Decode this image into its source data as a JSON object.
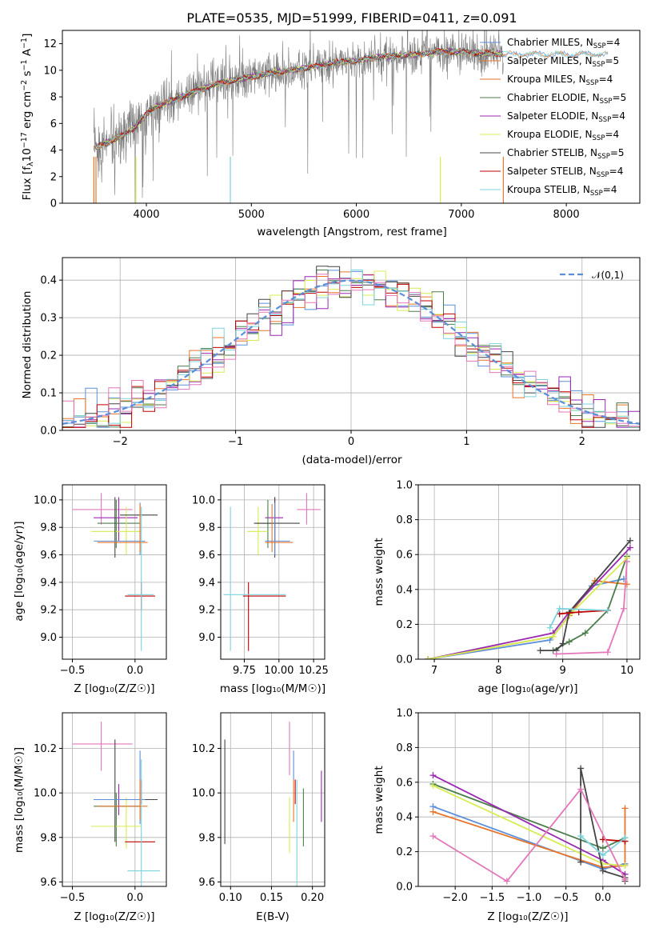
{
  "colors": {
    "Chabrier MILES": "#5b8fd9",
    "Salpeter MILES": "#e7752a",
    "Kroupa MILES": "#e7752a",
    "Chabrier ELODIE": "#4c7d4c",
    "Salpeter ELODIE": "#9a27b0",
    "Kroupa ELODIE": "#d6ec52",
    "Chabrier STELIB": "#444444",
    "Salpeter STELIB": "#c00000",
    "Kroupa STELIB": "#7dd3dc",
    "pink": "#e377b9",
    "gauss": "#5b8fd9",
    "grid": "#b0b0b0",
    "spectrum_gray": "#7a7a7a"
  },
  "chart_data": [
    {
      "id": "spectrum",
      "type": "line",
      "title": "PLATE=0535, MJD=51999, FIBERID=0411, z=0.091",
      "xlabel": "wavelength [Angstrom, rest frame]",
      "ylabel": "Flux [f$_\\lambda$10$^{-17}$ erg cm$^{-2}$ s$^{-1}$ A$^{-1}$]",
      "ylabel_parts": [
        "Flux [f",
        "λ",
        "10",
        "−17",
        " erg cm",
        "−2",
        " s",
        "−1",
        " A",
        "−1",
        "]"
      ],
      "xlim": [
        3200,
        8700
      ],
      "ylim": [
        0,
        13
      ],
      "xticks": [
        "4000",
        "5000",
        "6000",
        "7000",
        "8000"
      ],
      "yticks": [
        "0",
        "2",
        "4",
        "6",
        "8",
        "10",
        "12"
      ],
      "continuum_x": [
        3500,
        3600,
        3700,
        3800,
        3900,
        4000,
        4100,
        4200,
        4400,
        4600,
        4800,
        5000,
        5200,
        5400,
        5600,
        5800,
        6000,
        6200,
        6400,
        6600,
        6800,
        7000,
        7200,
        7400
      ],
      "continuum_y": [
        4.1,
        4.5,
        4.8,
        5.2,
        5.8,
        6.7,
        7.3,
        7.6,
        8.2,
        8.8,
        9.2,
        9.5,
        9.8,
        10.0,
        10.3,
        10.6,
        10.7,
        11.0,
        11.1,
        11.2,
        11.4,
        11.4,
        11.3,
        11.2
      ],
      "miles_extension_to": 8400,
      "legend_position": "upper right",
      "legend": [
        {
          "name": "Chabrier MILES",
          "sub": "SSP",
          "n": "=4"
        },
        {
          "name": "Salpeter MILES",
          "sub": "SSP",
          "n": "=5"
        },
        {
          "name": "Kroupa MILES",
          "sub": "SSP",
          "n": "=4"
        },
        {
          "name": "Chabrier ELODIE",
          "sub": "SSP",
          "n": "=5"
        },
        {
          "name": "Salpeter ELODIE",
          "sub": "SSP",
          "n": "=4"
        },
        {
          "name": "Kroupa ELODIE",
          "sub": "SSP",
          "n": "=4"
        },
        {
          "name": "Chabrier STELIB",
          "sub": "SSP",
          "n": "=5"
        },
        {
          "name": "Salpeter STELIB",
          "sub": "SSP",
          "n": "=4"
        },
        {
          "name": "Kroupa STELIB",
          "sub": "SSP",
          "n": "=4"
        }
      ]
    },
    {
      "id": "residuals",
      "type": "histogram",
      "xlabel": "(data-model)/error",
      "ylabel": "Normed distribution",
      "xlim": [
        -2.5,
        2.5
      ],
      "ylim": [
        0,
        0.46
      ],
      "xticks": [
        "−2",
        "−1",
        "0",
        "1",
        "2"
      ],
      "yticks": [
        "0.0",
        "0.1",
        "0.2",
        "0.3",
        "0.4"
      ],
      "bin_width": 0.1,
      "legend": "𝒩(0,1)",
      "legend_position": "upper right",
      "series_colors": [
        "#5b8fd9",
        "#e7752a",
        "#4c7d4c",
        "#9a27b0",
        "#d6ec52",
        "#444444",
        "#c00000",
        "#7dd3dc",
        "#e377b9"
      ]
    },
    {
      "id": "z-age",
      "type": "errorbar",
      "xlabel": "Z [log₁₀(Z/Z☉)]",
      "ylabel": "age  [log₁₀(age/yr)]",
      "xlim": [
        -0.58,
        0.25
      ],
      "ylim": [
        8.84,
        10.11
      ],
      "xticks": [
        "−0.5",
        "0.0"
      ],
      "yticks": [
        "9.0",
        "9.2",
        "9.4",
        "9.6",
        "9.8",
        "10.0"
      ],
      "points": [
        {
          "color": "#e377b9",
          "x": -0.27,
          "xe": [
            -0.5,
            -0.02
          ],
          "y": 9.93,
          "ye": [
            9.82,
            10.05
          ]
        },
        {
          "color": "#9a27b0",
          "x": -0.13,
          "xe": [
            -0.33,
            0.02
          ],
          "y": 9.87,
          "ye": [
            9.7,
            10.02
          ]
        },
        {
          "color": "#4c7d4c",
          "x": -0.15,
          "xe": [
            -0.3,
            0.04
          ],
          "y": 9.83,
          "ye": [
            9.65,
            10.0
          ]
        },
        {
          "color": "#d6ec52",
          "x": -0.07,
          "xe": [
            -0.35,
            0.05
          ],
          "y": 9.77,
          "ye": [
            9.6,
            9.95
          ]
        },
        {
          "color": "#444444",
          "x": -0.16,
          "xe": [
            -0.12,
            0.18
          ],
          "y": 9.89,
          "ye": [
            9.58,
            10.02
          ]
        },
        {
          "color": "#5b8fd9",
          "x": 0.04,
          "xe": [
            -0.33,
            0.08
          ],
          "y": 9.7,
          "ye": [
            9.6,
            9.98
          ]
        },
        {
          "color": "#e7752a",
          "x": 0.04,
          "xe": [
            -0.3,
            0.1
          ],
          "y": 9.69,
          "ye": [
            9.62,
            9.97
          ]
        },
        {
          "color": "#c00000",
          "x": 0.05,
          "xe": [
            -0.08,
            0.16
          ],
          "y": 9.3,
          "ye": [
            9.2,
            9.4
          ]
        },
        {
          "color": "#7dd3dc",
          "x": 0.05,
          "xe": [
            -0.06,
            0.15
          ],
          "y": 9.31,
          "ye": [
            8.9,
            9.95
          ]
        }
      ]
    },
    {
      "id": "mass-age",
      "type": "errorbar",
      "xlabel": "mass [log₁₀(M/M☉)]",
      "ylabel": "",
      "xlim": [
        9.58,
        10.33
      ],
      "ylim": [
        8.84,
        10.11
      ],
      "xticks": [
        "9.75",
        "10.00",
        "10.25"
      ],
      "yticks": [
        "9.0",
        "9.2",
        "9.4",
        "9.6",
        "9.8",
        "10.0"
      ],
      "points": [
        {
          "color": "#e377b9",
          "x": 10.2,
          "xe": [
            10.13,
            10.3
          ],
          "y": 9.93,
          "ye": [
            9.82,
            10.05
          ]
        },
        {
          "color": "#9a27b0",
          "x": 9.97,
          "xe": [
            9.9,
            10.03
          ],
          "y": 9.87,
          "ye": [
            9.7,
            10.02
          ]
        },
        {
          "color": "#4c7d4c",
          "x": 9.92,
          "xe": [
            9.83,
            9.97
          ],
          "y": 9.83,
          "ye": [
            9.65,
            10.0
          ]
        },
        {
          "color": "#d6ec52",
          "x": 9.85,
          "xe": [
            9.77,
            9.92
          ],
          "y": 9.77,
          "ye": [
            9.6,
            9.95
          ]
        },
        {
          "color": "#444444",
          "x": 9.97,
          "xe": [
            9.82,
            10.15
          ],
          "y": 9.83,
          "ye": [
            9.58,
            10.02
          ]
        },
        {
          "color": "#5b8fd9",
          "x": 9.97,
          "xe": [
            9.9,
            10.08
          ],
          "y": 9.7,
          "ye": [
            9.6,
            9.98
          ]
        },
        {
          "color": "#e7752a",
          "x": 9.95,
          "xe": [
            9.9,
            10.1
          ],
          "y": 9.69,
          "ye": [
            9.62,
            9.97
          ]
        },
        {
          "color": "#c00000",
          "x": 9.78,
          "xe": [
            9.74,
            10.05
          ],
          "y": 9.3,
          "ye": [
            8.9,
            9.4
          ]
        },
        {
          "color": "#7dd3dc",
          "x": 9.65,
          "xe": [
            9.6,
            10.05
          ],
          "y": 9.31,
          "ye": [
            8.9,
            9.95
          ]
        }
      ]
    },
    {
      "id": "age-weight",
      "type": "line",
      "xlabel": "age  [log₁₀(age/yr)]",
      "ylabel": "mass weight",
      "xlim": [
        6.75,
        10.2
      ],
      "ylim": [
        0,
        1
      ],
      "xticks": [
        "7",
        "8",
        "9",
        "10"
      ],
      "yticks": [
        "0.0",
        "0.2",
        "0.4",
        "0.6",
        "0.8",
        "1.0"
      ],
      "series": [
        {
          "color": "#5b8fd9",
          "x": [
            6.9,
            8.8,
            9.1,
            9.45,
            9.95
          ],
          "y": [
            0.0,
            0.11,
            0.25,
            0.42,
            0.46
          ]
        },
        {
          "color": "#e7752a",
          "x": [
            6.9,
            8.85,
            9.1,
            9.5,
            10.0
          ],
          "y": [
            0.0,
            0.13,
            0.25,
            0.45,
            0.43
          ]
        },
        {
          "color": "#4c7d4c",
          "x": [
            8.85,
            9.1,
            9.35,
            9.7,
            10.0
          ],
          "y": [
            0.05,
            0.1,
            0.15,
            0.28,
            0.59
          ]
        },
        {
          "color": "#9a27b0",
          "x": [
            6.9,
            8.85,
            9.1,
            10.05
          ],
          "y": [
            0.0,
            0.15,
            0.27,
            0.64
          ]
        },
        {
          "color": "#d6ec52",
          "x": [
            6.9,
            8.85,
            9.15,
            10.0
          ],
          "y": [
            0.0,
            0.13,
            0.27,
            0.58
          ]
        },
        {
          "color": "#444444",
          "x": [
            8.65,
            8.9,
            9.0,
            9.1,
            10.05
          ],
          "y": [
            0.05,
            0.05,
            0.09,
            0.27,
            0.68
          ]
        },
        {
          "color": "#c00000",
          "x": [
            8.95,
            9.25,
            9.7
          ],
          "y": [
            0.26,
            0.27,
            0.28
          ]
        },
        {
          "color": "#7dd3dc",
          "x": [
            8.8,
            8.95,
            9.7
          ],
          "y": [
            0.18,
            0.29,
            0.28
          ]
        },
        {
          "color": "#e377b9",
          "x": [
            8.9,
            9.7,
            9.95,
            10.0
          ],
          "y": [
            0.03,
            0.04,
            0.29,
            0.56
          ]
        }
      ]
    },
    {
      "id": "z-mass",
      "type": "errorbar",
      "xlabel": "Z [log₁₀(Z/Z☉)]",
      "ylabel": "mass [log₁₀(M/M☉)]",
      "xlim": [
        -0.58,
        0.25
      ],
      "ylim": [
        9.58,
        10.36
      ],
      "xticks": [
        "−0.5",
        "0.0"
      ],
      "yticks": [
        "9.6",
        "9.8",
        "10.0",
        "10.2"
      ],
      "points": [
        {
          "color": "#e377b9",
          "x": -0.27,
          "xe": [
            -0.5,
            -0.02
          ],
          "y": 10.22,
          "ye": [
            10.1,
            10.32
          ]
        },
        {
          "color": "#9a27b0",
          "x": -0.13,
          "xe": [
            -0.33,
            0.02
          ],
          "y": 9.97,
          "ye": [
            9.9,
            10.04
          ]
        },
        {
          "color": "#4c7d4c",
          "x": -0.15,
          "xe": [
            -0.33,
            0.05
          ],
          "y": 9.94,
          "ye": [
            9.76,
            10.0
          ]
        },
        {
          "color": "#d6ec52",
          "x": -0.07,
          "xe": [
            -0.35,
            0.05
          ],
          "y": 9.85,
          "ye": [
            9.75,
            9.98
          ]
        },
        {
          "color": "#444444",
          "x": -0.16,
          "xe": [
            -0.12,
            0.18
          ],
          "y": 9.97,
          "ye": [
            9.78,
            10.24
          ]
        },
        {
          "color": "#5b8fd9",
          "x": 0.04,
          "xe": [
            -0.33,
            0.08
          ],
          "y": 9.97,
          "ye": [
            9.86,
            10.19
          ]
        },
        {
          "color": "#e7752a",
          "x": 0.04,
          "xe": [
            -0.3,
            0.1
          ],
          "y": 9.94,
          "ye": [
            9.88,
            10.06
          ]
        },
        {
          "color": "#c00000",
          "x": 0.05,
          "xe": [
            -0.08,
            0.16
          ],
          "y": 9.78,
          "ye": [
            9.95,
            10.06
          ]
        },
        {
          "color": "#7dd3dc",
          "x": 0.05,
          "xe": [
            -0.06,
            0.2
          ],
          "y": 9.65,
          "ye": [
            9.58,
            10.15
          ]
        }
      ]
    },
    {
      "id": "ebv-mass",
      "type": "errorbar",
      "xlabel": "E(B-V)",
      "ylabel": "",
      "xlim": [
        0.088,
        0.215
      ],
      "ylim": [
        9.58,
        10.36
      ],
      "xticks": [
        "0.10",
        "0.15",
        "0.20"
      ],
      "yticks": [
        "9.6",
        "9.8",
        "10.0",
        "10.2"
      ],
      "points": [
        {
          "color": "#444444",
          "x": 0.093,
          "y": 10.0,
          "ye": [
            9.77,
            10.24
          ]
        },
        {
          "color": "#e377b9",
          "x": 0.172,
          "y": 10.2,
          "ye": [
            10.08,
            10.32
          ]
        },
        {
          "color": "#d6ec52",
          "x": 0.172,
          "y": 9.85,
          "ye": [
            9.73,
            9.98
          ]
        },
        {
          "color": "#5b8fd9",
          "x": 0.177,
          "y": 10.1,
          "ye": [
            10.06,
            10.19
          ]
        },
        {
          "color": "#e7752a",
          "x": 0.177,
          "y": 9.94,
          "ye": [
            9.87,
            10.06
          ]
        },
        {
          "color": "#c00000",
          "x": 0.179,
          "y": 10.0,
          "ye": [
            9.95,
            10.06
          ]
        },
        {
          "color": "#7dd3dc",
          "x": 0.181,
          "y": 9.65,
          "ye": [
            9.58,
            10.06
          ]
        },
        {
          "color": "#4c7d4c",
          "x": 0.189,
          "y": 9.9,
          "ye": [
            9.76,
            10.02
          ]
        },
        {
          "color": "#9a27b0",
          "x": 0.211,
          "y": 10.0,
          "ye": [
            9.87,
            10.1
          ]
        }
      ]
    },
    {
      "id": "z-weight",
      "type": "line",
      "xlabel": "Z [log₁₀(Z/Z☉)]",
      "ylabel": "mass weight",
      "xlim": [
        -2.5,
        0.5
      ],
      "ylim": [
        0,
        1
      ],
      "xticks": [
        "−2.0",
        "−1.5",
        "−1.0",
        "−0.5",
        "0.0"
      ],
      "yticks": [
        "0.0",
        "0.2",
        "0.4",
        "0.6",
        "0.8",
        "1.0"
      ],
      "series": [
        {
          "color": "#5b8fd9",
          "x": [
            -2.3,
            0.0,
            0.3
          ],
          "y": [
            0.46,
            0.1,
            0.13
          ]
        },
        {
          "color": "#e7752a",
          "x": [
            -2.3,
            0.0,
            0.3,
            0.3
          ],
          "y": [
            0.43,
            0.11,
            0.12,
            0.45
          ]
        },
        {
          "color": "#4c7d4c",
          "x": [
            -2.3,
            0.0,
            0.3
          ],
          "y": [
            0.59,
            0.22,
            0.28
          ]
        },
        {
          "color": "#9a27b0",
          "x": [
            -2.3,
            0.0,
            0.3
          ],
          "y": [
            0.64,
            0.15,
            0.07
          ]
        },
        {
          "color": "#d6ec52",
          "x": [
            -2.3,
            0.0,
            0.3
          ],
          "y": [
            0.58,
            0.13,
            0.12
          ]
        },
        {
          "color": "#444444",
          "x": [
            -0.3,
            -0.3,
            0.0,
            0.3,
            0.3
          ],
          "y": [
            0.14,
            0.68,
            0.09,
            0.05,
            0.03
          ]
        },
        {
          "color": "#c00000",
          "x": [
            0.0,
            0.3
          ],
          "y": [
            0.27,
            0.26
          ]
        },
        {
          "color": "#7dd3dc",
          "x": [
            -0.3,
            0.0,
            0.3
          ],
          "y": [
            0.29,
            0.18,
            0.28
          ]
        },
        {
          "color": "#e377b9",
          "x": [
            -2.3,
            -1.3,
            -0.3,
            0.3
          ],
          "y": [
            0.29,
            0.03,
            0.56,
            0.04
          ]
        }
      ]
    }
  ]
}
